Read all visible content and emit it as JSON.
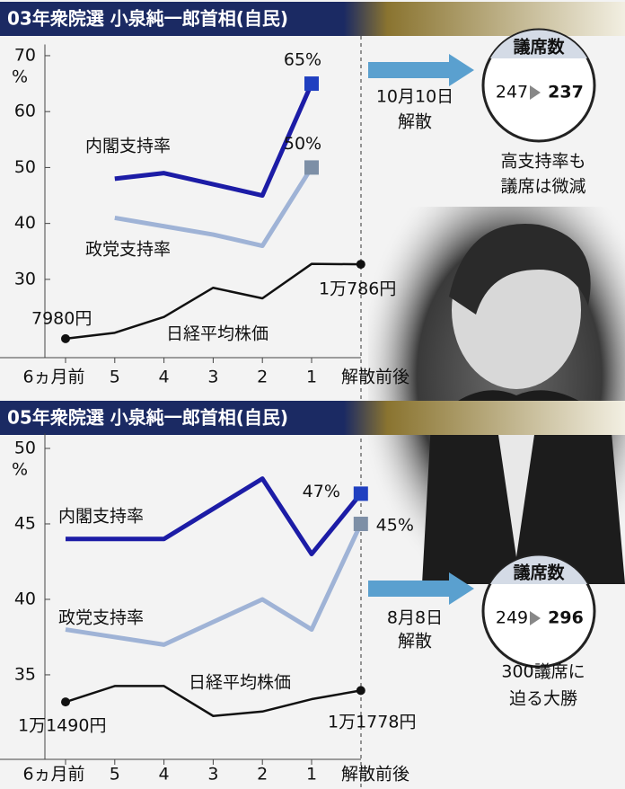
{
  "chart_data": [
    {
      "type": "line",
      "title": "03年衆院選 小泉純一郎首相(自民)",
      "y_unit": "%",
      "categories": [
        "6ヵ月前",
        "5",
        "4",
        "3",
        "2",
        "1",
        "解散前後"
      ],
      "ylim": [
        16,
        72
      ],
      "yticks": [
        30,
        40,
        50,
        60,
        70
      ],
      "y2lim": [
        7263,
        19079
      ],
      "series": [
        {
          "name": "内閣支持率",
          "color": "#1c1ca6",
          "marker_color": "#1f3fc0",
          "values": [
            null,
            48,
            49,
            47,
            45,
            65,
            null
          ],
          "value_labels": [
            null,
            null,
            null,
            null,
            null,
            "65%",
            null
          ]
        },
        {
          "name": "政党支持率",
          "color": "#9fb3d6",
          "marker_color": "#7d8fa6",
          "values": [
            null,
            41,
            39.5,
            38,
            36,
            50,
            null
          ],
          "value_labels": [
            null,
            null,
            null,
            null,
            null,
            "50%",
            null
          ]
        },
        {
          "name": "日経平均株価",
          "color": "#111111",
          "axis": "y2",
          "values": [
            7980,
            8200,
            8800,
            9900,
            9500,
            10800,
            10786
          ],
          "value_labels": [
            "7980円",
            null,
            null,
            null,
            null,
            null,
            "1万786円"
          ]
        }
      ],
      "annotations": {
        "date": "10月10日",
        "event": "解散",
        "seat_label": "議席数",
        "seats_before": 247,
        "seats_after": 237,
        "caption": [
          "高支持率も",
          "議席は微減"
        ]
      }
    },
    {
      "type": "line",
      "title": "05年衆院選 小泉純一郎首相(自民)",
      "y_unit": "%",
      "categories": [
        "6ヵ月前",
        "5",
        "4",
        "3",
        "2",
        "1",
        "解散前後"
      ],
      "ylim": [
        29.4,
        51
      ],
      "yticks": [
        35,
        40,
        45,
        50
      ],
      "y2lim": [
        10050,
        18230
      ],
      "series": [
        {
          "name": "内閣支持率",
          "color": "#1c1ca6",
          "marker_color": "#1f3fc0",
          "values": [
            44,
            44,
            44,
            46,
            48,
            43,
            47
          ],
          "value_labels": [
            null,
            null,
            null,
            null,
            null,
            null,
            "47%"
          ]
        },
        {
          "name": "政党支持率",
          "color": "#9fb3d6",
          "marker_color": "#7d8fa6",
          "values": [
            38,
            37.5,
            37,
            38.5,
            40,
            38,
            45
          ],
          "value_labels": [
            null,
            null,
            null,
            null,
            null,
            null,
            "45%"
          ]
        },
        {
          "name": "日経平均株価",
          "color": "#111111",
          "axis": "y2",
          "values": [
            11490,
            11889,
            11889,
            11138,
            11250,
            11560,
            11778
          ],
          "value_labels": [
            "1万1490円",
            null,
            null,
            null,
            null,
            null,
            "1万1778円"
          ]
        }
      ],
      "annotations": {
        "date": "8月8日",
        "event": "解散",
        "seat_label": "議席数",
        "seats_before": 249,
        "seats_after": 296,
        "caption": [
          "300議席に",
          "迫る大勝"
        ]
      }
    }
  ]
}
